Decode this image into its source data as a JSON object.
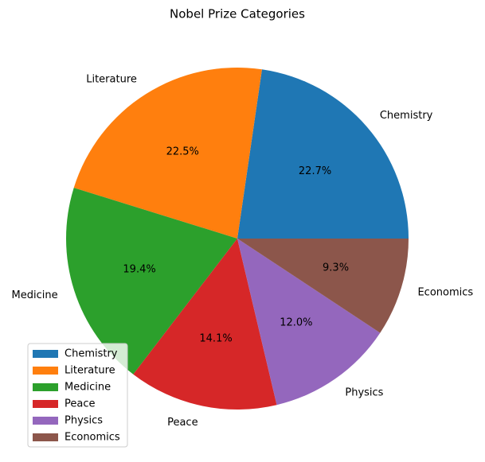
{
  "chart_data": {
    "type": "pie",
    "title": "Nobel Prize Categories",
    "categories": [
      "Chemistry",
      "Literature",
      "Medicine",
      "Peace",
      "Physics",
      "Economics"
    ],
    "values": [
      22.7,
      22.5,
      19.4,
      14.1,
      12.0,
      9.3
    ],
    "value_labels": [
      "22.7%",
      "22.5%",
      "19.4%",
      "14.1%",
      "12.0%",
      "9.3%"
    ],
    "colors": [
      "#1f77b4",
      "#ff7f0e",
      "#2ca02c",
      "#d62728",
      "#9467bd",
      "#8c564b"
    ],
    "legend": "lower left"
  }
}
